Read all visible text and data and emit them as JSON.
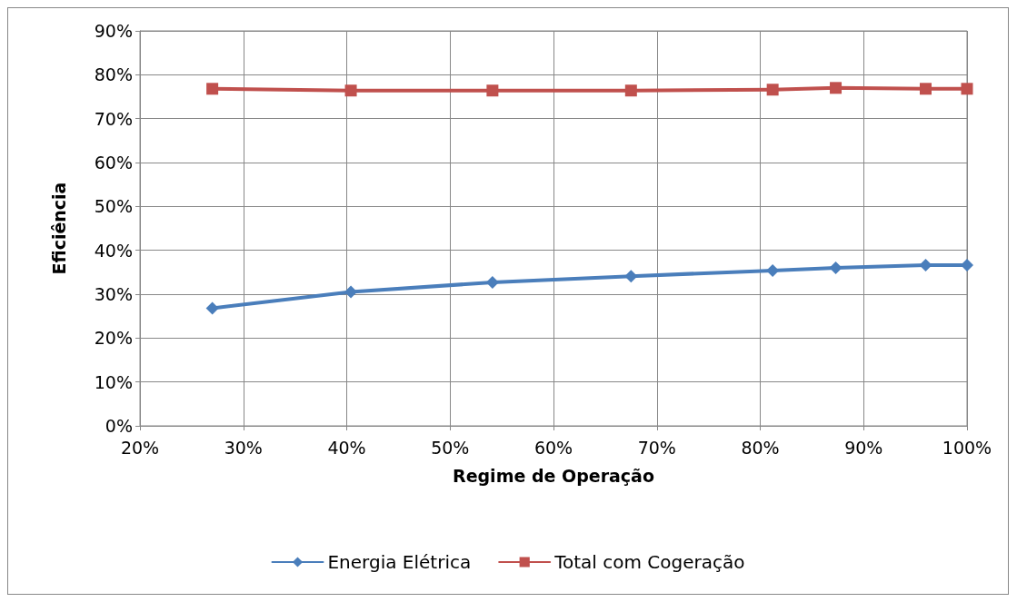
{
  "chart_data": {
    "type": "line",
    "xlabel": "Regime de Operação",
    "ylabel": "Eficiência",
    "x": [
      27,
      40.4,
      54.1,
      67.5,
      81.2,
      87.3,
      96,
      100
    ],
    "series": [
      {
        "name": "Energia Elétrica",
        "color": "#4a7ebb",
        "marker": "diamond",
        "values": [
          26.8,
          30.5,
          32.7,
          34.1,
          35.4,
          36,
          36.6,
          36.6
        ]
      },
      {
        "name": "Total com Cogeração",
        "color": "#c0504d",
        "marker": "square",
        "values": [
          76.8,
          76.4,
          76.4,
          76.4,
          76.6,
          77,
          76.8,
          76.8
        ]
      }
    ],
    "xlim": [
      20,
      100
    ],
    "xticks": [
      {
        "value": 20,
        "label": "20%"
      },
      {
        "value": 30,
        "label": "30%"
      },
      {
        "value": 40,
        "label": "40%"
      },
      {
        "value": 50,
        "label": "50%"
      },
      {
        "value": 60,
        "label": "60%"
      },
      {
        "value": 70,
        "label": "70%"
      },
      {
        "value": 80,
        "label": "80%"
      },
      {
        "value": 90,
        "label": "90%"
      },
      {
        "value": 100,
        "label": "100%"
      }
    ],
    "ylim": [
      0,
      90
    ],
    "yticks": [
      {
        "value": 0,
        "label": "0%"
      },
      {
        "value": 10,
        "label": "10%"
      },
      {
        "value": 20,
        "label": "20%"
      },
      {
        "value": 30,
        "label": "30%"
      },
      {
        "value": 40,
        "label": "40%"
      },
      {
        "value": 50,
        "label": "50%"
      },
      {
        "value": 60,
        "label": "60%"
      },
      {
        "value": 70,
        "label": "70%"
      },
      {
        "value": 80,
        "label": "80%"
      },
      {
        "value": 90,
        "label": "90%"
      }
    ],
    "grid": true,
    "legend": "bottom",
    "line_style": "solid"
  }
}
